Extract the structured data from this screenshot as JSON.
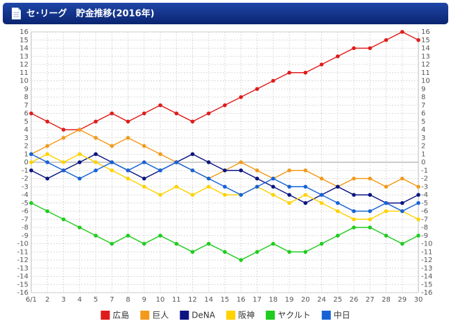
{
  "header": {
    "title": "セ･リーグ　貯金推移(2016年)"
  },
  "chart_data": {
    "type": "line",
    "categories": [
      "6/1",
      "2",
      "3",
      "4",
      "5",
      "7",
      "8",
      "9",
      "10",
      "11",
      "12",
      "14",
      "15",
      "16",
      "17",
      "18",
      "19",
      "20",
      "24",
      "25",
      "26",
      "27",
      "28",
      "29",
      "30"
    ],
    "series": [
      {
        "name": "広島",
        "color": "#e01b1b",
        "values": [
          6,
          5,
          4,
          4,
          5,
          6,
          5,
          6,
          7,
          6,
          5,
          6,
          7,
          8,
          9,
          10,
          11,
          11,
          12,
          13,
          14,
          14,
          15,
          16,
          15
        ]
      },
      {
        "name": "巨人",
        "color": "#f39a1a",
        "values": [
          1,
          2,
          3,
          4,
          3,
          2,
          3,
          2,
          1,
          0,
          -1,
          -2,
          -1,
          0,
          -1,
          -2,
          -1,
          -1,
          -2,
          -3,
          -2,
          -2,
          -3,
          -2,
          -3
        ]
      },
      {
        "name": "DeNA",
        "color": "#0b1580",
        "values": [
          -1,
          -2,
          -1,
          0,
          1,
          0,
          -1,
          -2,
          -1,
          0,
          1,
          0,
          -1,
          -1,
          -2,
          -3,
          -4,
          -5,
          -4,
          -3,
          -4,
          -4,
          -5,
          -5,
          -4
        ]
      },
      {
        "name": "阪神",
        "color": "#ffd200",
        "values": [
          0,
          1,
          0,
          1,
          0,
          -1,
          -2,
          -3,
          -4,
          -3,
          -4,
          -3,
          -4,
          -4,
          -3,
          -4,
          -5,
          -4,
          -5,
          -6,
          -7,
          -7,
          -6,
          -6,
          -7
        ]
      },
      {
        "name": "ヤクルト",
        "color": "#1fcc1f",
        "values": [
          -5,
          -6,
          -7,
          -8,
          -9,
          -10,
          -9,
          -10,
          -9,
          -10,
          -11,
          -10,
          -11,
          -12,
          -11,
          -10,
          -11,
          -11,
          -10,
          -9,
          -8,
          -8,
          -9,
          -10,
          -9
        ]
      },
      {
        "name": "中日",
        "color": "#1763d6",
        "values": [
          1,
          0,
          -1,
          -2,
          -1,
          0,
          -1,
          0,
          -1,
          0,
          -1,
          -2,
          -3,
          -4,
          -3,
          -2,
          -3,
          -3,
          -4,
          -5,
          -6,
          -6,
          -5,
          -6,
          -5
        ]
      }
    ],
    "ylim": [
      -16,
      16
    ],
    "yticks": [
      -16,
      -15,
      -14,
      -13,
      -12,
      -11,
      -10,
      -9,
      -8,
      -7,
      -6,
      -5,
      -4,
      -3,
      -2,
      -1,
      0,
      1,
      2,
      3,
      4,
      5,
      6,
      7,
      8,
      9,
      10,
      11,
      12,
      13,
      14,
      15,
      16
    ],
    "grid": true,
    "legend": "bottom"
  }
}
